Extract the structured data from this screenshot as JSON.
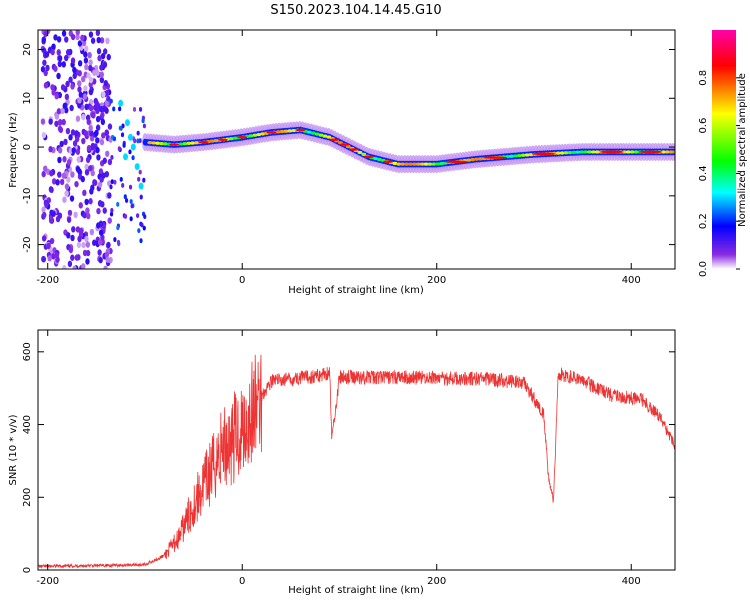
{
  "title": "S150.2023.104.14.45.G10",
  "chart_data": [
    {
      "type": "heatmap",
      "xlabel": "Height of straight line (km)",
      "ylabel": "Frequency (Hz)",
      "xlim": [
        -210,
        445
      ],
      "ylim": [
        -25,
        24
      ],
      "xticks": [
        -200,
        0,
        200,
        400
      ],
      "yticks": [
        -20,
        -10,
        0,
        10,
        20
      ],
      "grid": false,
      "colorbar": {
        "label": "Normalized spectral amplitude",
        "range": [
          0,
          1
        ],
        "ticks": [
          0.0,
          0.2,
          0.4,
          0.6,
          0.8
        ],
        "colormap": [
          "#ffffff",
          "#8a2be2",
          "#0000ff",
          "#00ffff",
          "#00ff00",
          "#ffff00",
          "#ff0000",
          "#ff00aa"
        ]
      },
      "ridge_frequency": {
        "x": [
          -100,
          -70,
          -40,
          0,
          30,
          60,
          90,
          110,
          130,
          160,
          200,
          240,
          300,
          350,
          445
        ],
        "y": [
          1,
          0.5,
          1,
          2,
          3,
          3.5,
          2,
          0,
          -2,
          -3.5,
          -3.5,
          -2.5,
          -1.5,
          -1,
          -1
        ]
      }
    },
    {
      "type": "line",
      "xlabel": "Height of straight line (km)",
      "ylabel": "SNR (10 * v/v)",
      "xlim": [
        -210,
        445
      ],
      "ylim": [
        0,
        660
      ],
      "xticks": [
        -200,
        0,
        200,
        400
      ],
      "yticks": [
        0,
        200,
        400,
        600
      ],
      "grid": false,
      "series": [
        {
          "color": "#ee3333",
          "x": [
            -210,
            -150,
            -100,
            -80,
            -65,
            -50,
            -30,
            -20,
            -10,
            0,
            10,
            20,
            30,
            50,
            80,
            90,
            92,
            100,
            150,
            200,
            250,
            290,
            300,
            310,
            315,
            320,
            325,
            350,
            380,
            410,
            430,
            445
          ],
          "y": [
            10,
            12,
            15,
            40,
            90,
            180,
            280,
            340,
            360,
            390,
            430,
            480,
            520,
            525,
            535,
            545,
            360,
            530,
            530,
            528,
            525,
            515,
            470,
            430,
            250,
            190,
            540,
            520,
            480,
            470,
            420,
            340
          ]
        }
      ]
    }
  ]
}
